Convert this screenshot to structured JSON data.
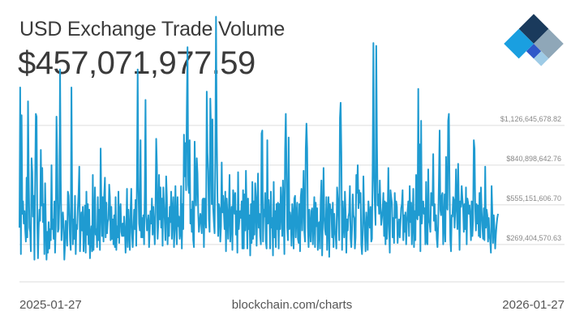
{
  "header": {
    "title": "USD Exchange Trade Volume",
    "headline_value": "$457,071,977.59"
  },
  "footer": {
    "start_date": "2025-01-27",
    "source": "blockchain.com/charts",
    "end_date": "2026-01-27"
  },
  "colors": {
    "line": "#1f9bd1",
    "grid": "#dddddd",
    "tick_text": "#888888",
    "logo_dark": "#1a3a5c",
    "logo_blue": "#1a9fe0",
    "logo_royal": "#2f58c9",
    "logo_gray": "#8fa7b8",
    "logo_light": "#9ecbe6"
  },
  "logo": {
    "icon": "blockchain-logo-icon"
  },
  "chart_data": {
    "type": "line",
    "title": "USD Exchange Trade Volume",
    "xlabel": "",
    "ylabel": "",
    "x_start": "2025-01-27",
    "x_end": "2026-01-27",
    "ylim": [
      0,
      1400000000
    ],
    "y_ticks": [
      269404570.63,
      555151606.7,
      840898642.76,
      1126645678.82
    ],
    "y_tick_labels": [
      "$269,404,570.63",
      "$555,151,606.70",
      "$840,898,642.76",
      "$1,126,645,678.82"
    ],
    "grid": true,
    "series": [
      {
        "values": [
          390,
          1400,
          200,
          1200,
          490,
          580,
          420,
          510,
          380,
          290,
          750,
          320,
          1300,
          760,
          390,
          360,
          220,
          890,
          790,
          470,
          620,
          160,
          720,
          1210,
          1190,
          430,
          170,
          390,
          520,
          440,
          950,
          550,
          820,
          430,
          560,
          200,
          710,
          420,
          160,
          360,
          210,
          430,
          240,
          380,
          300,
          840,
          380,
          450,
          310,
          580,
          210,
          410,
          1190,
          890,
          360,
          380,
          570,
          1530,
          730,
          300,
          420,
          500,
          410,
          160,
          270,
          440,
          380,
          260,
          650,
          620,
          460,
          300,
          230,
          1400,
          590,
          270,
          450,
          310,
          620,
          200,
          410,
          380,
          530,
          640,
          830,
          220,
          390,
          500,
          370,
          540,
          220,
          380,
          550,
          210,
          650,
          340,
          560,
          270,
          520,
          170,
          330,
          400,
          220,
          770,
          230,
          420,
          680,
          340,
          380,
          250,
          610,
          300,
          520,
          230,
          960,
          550,
          330,
          610,
          290,
          630,
          750,
          320,
          570,
          350,
          430,
          450,
          700,
          610,
          300,
          540,
          310,
          450,
          270,
          480,
          250,
          610,
          230,
          400,
          320,
          650,
          280,
          510,
          560,
          360,
          330,
          420,
          330,
          470,
          380,
          210,
          370,
          670,
          250,
          520,
          370,
          230,
          510,
          670,
          350,
          250,
          380,
          520,
          380,
          590,
          260,
          750,
          1530,
          680,
          420,
          370,
          1020,
          320,
          460,
          320,
          480,
          270,
          660,
          1310,
          470,
          370,
          410,
          480,
          250,
          380,
          510,
          420,
          600,
          340,
          540,
          410,
          270,
          500,
          1030,
          830,
          310,
          420,
          770,
          450,
          680,
          390,
          600,
          260,
          680,
          550,
          440,
          300,
          760,
          610,
          270,
          460,
          330,
          540,
          430,
          650,
          310,
          510,
          610,
          250,
          400,
          690,
          400,
          270,
          610,
          400,
          470,
          310,
          350,
          690,
          240,
          560,
          380,
          1060,
          760,
          1000,
          660,
          1240,
          1690,
          700,
          640,
          1020,
          420,
          520,
          360,
          580,
          300,
          250,
          1010,
          680,
          550,
          890,
          780,
          500,
          360,
          420,
          490,
          450,
          350,
          590,
          600,
          250,
          600,
          500,
          390,
          1370,
          930,
          800,
          450,
          360,
          1320,
          1090,
          560,
          1170,
          530,
          430,
          350,
          860,
          1910,
          1070,
          620,
          330,
          560,
          530,
          290,
          400,
          860,
          500,
          620,
          500,
          380,
          650,
          220,
          600,
          490,
          310,
          510,
          770,
          290,
          440,
          540,
          230,
          660,
          610,
          490,
          640,
          340,
          510,
          210,
          790,
          380,
          460,
          510,
          460,
          580,
          240,
          660,
          240,
          630,
          370,
          800,
          510,
          240,
          600,
          380,
          480,
          190,
          560,
          280,
          720,
          310,
          580,
          340,
          710,
          610,
          260,
          530,
          780,
          390,
          490,
          330,
          270,
          1070,
          1090,
          290,
          520,
          470,
          640,
          290,
          240,
          1020,
          420,
          590,
          480,
          240,
          650,
          390,
          460,
          190,
          720,
          320,
          510,
          250,
          560,
          380,
          570,
          240,
          560,
          380,
          680,
          520,
          330,
          730,
          470,
          200,
          950,
          1210,
          820,
          390,
          300,
          1040,
          380,
          500,
          450,
          260,
          560,
          480,
          240,
          600,
          620,
          320,
          480,
          570,
          310,
          280,
          560,
          220,
          610,
          670,
          370,
          570,
          800,
          360,
          290,
          960,
          1140,
          960,
          390,
          250,
          520,
          400,
          290,
          510,
          530,
          270,
          440,
          610,
          250,
          570,
          400,
          530,
          230,
          420,
          430,
          240,
          580,
          730,
          190,
          430,
          820,
          470,
          380,
          340,
          610,
          230,
          430,
          610,
          180,
          560,
          500,
          520,
          320,
          570,
          250,
          490,
          370,
          330,
          240,
          680,
          600,
          460,
          300,
          1180,
          1290,
          930,
          230,
          580,
          420,
          320,
          650,
          500,
          210,
          450,
          370,
          470,
          500,
          690,
          310,
          250,
          380,
          630,
          480,
          460,
          240,
          320,
          770,
          640,
          840,
          530,
          660,
          570,
          640,
          270,
          200,
          340,
          760,
          490,
          350,
          220,
          500,
          410,
          230,
          580,
          480,
          390,
          540,
          290,
          310,
          860,
          1720,
          760,
          560,
          410,
          1700,
          1010,
          550,
          630,
          490,
          730,
          540,
          410,
          460,
          530,
          640,
          330,
          580,
          270,
          570,
          310,
          470,
          820,
          400,
          210,
          660,
          610,
          570,
          320,
          460,
          280,
          640,
          460,
          580,
          540,
          280,
          380,
          450,
          320,
          420,
          530,
          560,
          660,
          300,
          480,
          360,
          500,
          270,
          420,
          510,
          580,
          330,
          690,
          430,
          570,
          270,
          450,
          670,
          250,
          510,
          300,
          770,
          470,
          450,
          1390,
          480,
          990,
          220,
          1160,
          420,
          530,
          580,
          490,
          530,
          270,
          720,
          290,
          270,
          810,
          440,
          420,
          360,
          640,
          570,
          550,
          920,
          440,
          560,
          370,
          480,
          310,
          250,
          410,
          740,
          1090,
          520,
          480,
          620,
          640,
          270,
          420,
          630,
          290,
          900,
          550,
          520,
          1160,
          1210,
          640,
          300,
          220,
          480,
          470,
          610,
          590,
          390,
          530,
          810,
          530,
          380,
          850,
          540,
          230,
          580,
          540,
          690,
          600,
          530,
          360,
          560,
          380,
          680,
          270,
          600,
          570,
          490,
          550,
          460,
          300,
          580,
          330,
          450,
          1020,
          960,
          530,
          370,
          560,
          420,
          550,
          330,
          640,
          320,
          680,
          510,
          400,
          310,
          530,
          300,
          830,
          390,
          520,
          480,
          290,
          460,
          330,
          300,
          210,
          690,
          500,
          280,
          480,
          390,
          240,
          340,
          410,
          460,
          490
        ]
      }
    ]
  }
}
